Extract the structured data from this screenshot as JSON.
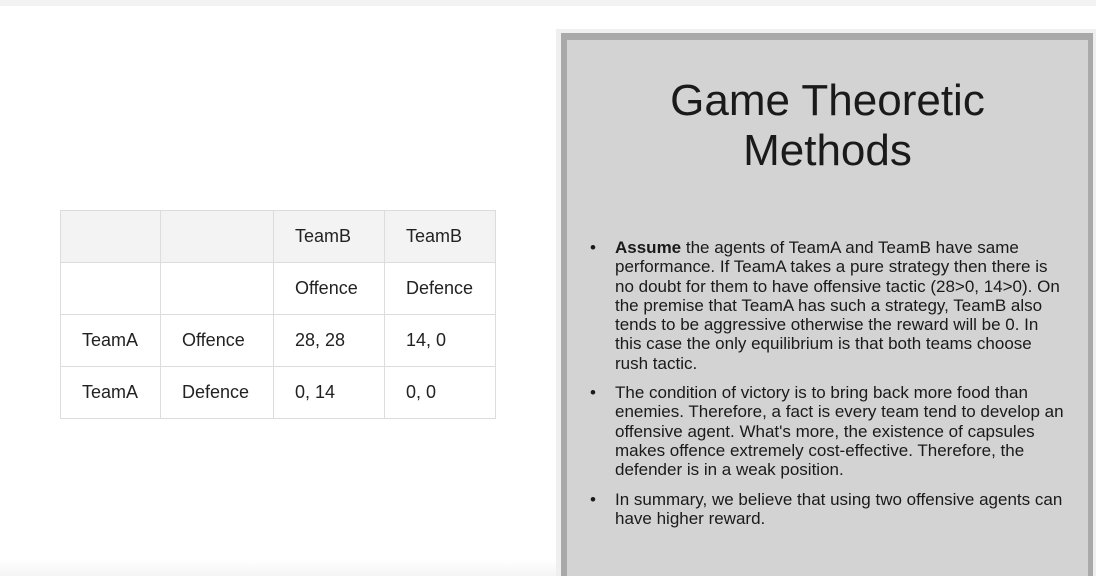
{
  "table": {
    "rows": [
      [
        "",
        "",
        "TeamB",
        "TeamB"
      ],
      [
        "",
        "",
        "Offence",
        "Defence"
      ],
      [
        "TeamA",
        "Offence",
        "28, 28",
        "14, 0"
      ],
      [
        "TeamA",
        "Defence",
        "0, 14",
        "0, 0"
      ]
    ]
  },
  "slide": {
    "title_line1": "Game Theoretic",
    "title_line2": "Methods",
    "bullets": [
      {
        "bold": "Assume",
        "text": " the agents of TeamA and TeamB have same performance. If TeamA takes a pure strategy then there is no doubt for them to have offensive tactic (28>0, 14>0). On the premise that TeamA has such a strategy, TeamB also tends to be aggressive otherwise the reward will be 0. In this case the only equilibrium is that both teams choose rush tactic."
      },
      {
        "bold": "",
        "text": "The condition of victory is to bring back more food than enemies. Therefore, a fact is every team tend to develop an offensive agent. What's more, the existence of capsules makes offence extremely cost-effective. Therefore, the defender is in a weak position."
      },
      {
        "bold": "",
        "text": "In summary, we believe that using two offensive agents can have higher reward."
      }
    ],
    "bullet_char": "•"
  }
}
